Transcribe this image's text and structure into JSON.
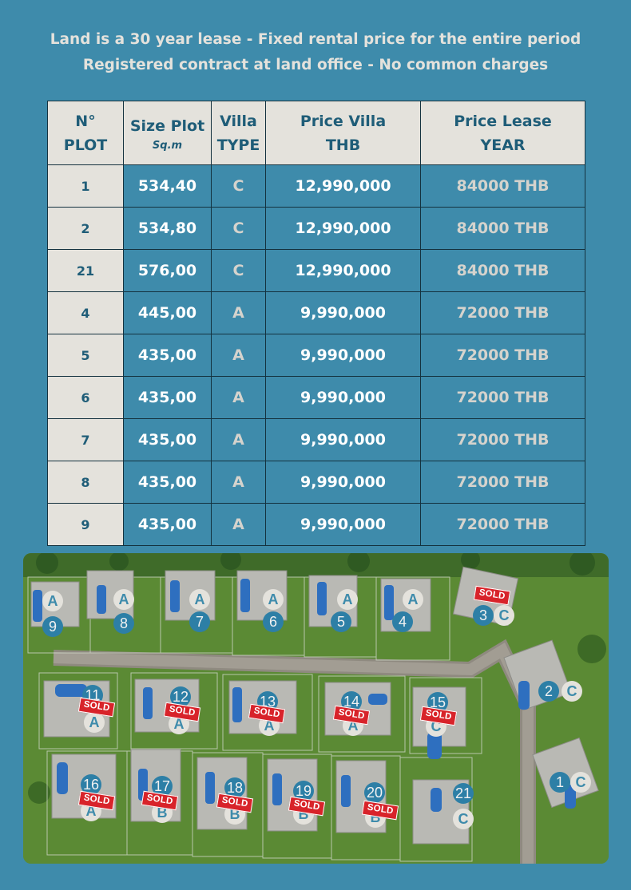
{
  "header": {
    "line1": "Land is a 30 year lease  -  Fixed rental price for the entire period",
    "line2": "Registered contract at land office  -  No common charges"
  },
  "table": {
    "headers": {
      "plot": {
        "line1": "N°",
        "line2": "PLOT"
      },
      "size": {
        "line1": "Size Plot",
        "line2": "Sq.m"
      },
      "type": {
        "line1": "Villa",
        "line2": "TYPE"
      },
      "price": {
        "line1": "Price Villa",
        "line2": "THB"
      },
      "lease": {
        "line1": "Price Lease",
        "line2": "YEAR"
      }
    },
    "rows": [
      {
        "plot": "1",
        "size": "534,40",
        "type": "C",
        "price": "12,990,000",
        "lease": "84000 THB"
      },
      {
        "plot": "2",
        "size": "534,80",
        "type": "C",
        "price": "12,990,000",
        "lease": "84000 THB"
      },
      {
        "plot": "21",
        "size": "576,00",
        "type": "C",
        "price": "12,990,000",
        "lease": "84000 THB"
      },
      {
        "plot": "4",
        "size": "445,00",
        "type": "A",
        "price": "9,990,000",
        "lease": "72000 THB"
      },
      {
        "plot": "5",
        "size": "435,00",
        "type": "A",
        "price": "9,990,000",
        "lease": "72000 THB"
      },
      {
        "plot": "6",
        "size": "435,00",
        "type": "A",
        "price": "9,990,000",
        "lease": "72000 THB"
      },
      {
        "plot": "7",
        "size": "435,00",
        "type": "A",
        "price": "9,990,000",
        "lease": "72000 THB"
      },
      {
        "plot": "8",
        "size": "435,00",
        "type": "A",
        "price": "9,990,000",
        "lease": "72000 THB"
      },
      {
        "plot": "9",
        "size": "435,00",
        "type": "A",
        "price": "9,990,000",
        "lease": "72000 THB"
      }
    ]
  },
  "map": {
    "sold_label": "SOLD",
    "plots": [
      {
        "num": "9",
        "type": "A",
        "sold": false
      },
      {
        "num": "8",
        "type": "A",
        "sold": false
      },
      {
        "num": "7",
        "type": "A",
        "sold": false
      },
      {
        "num": "6",
        "type": "A",
        "sold": false
      },
      {
        "num": "5",
        "type": "A",
        "sold": false
      },
      {
        "num": "4",
        "type": "A",
        "sold": false
      },
      {
        "num": "3",
        "type": "C",
        "sold": true
      },
      {
        "num": "2",
        "type": "C",
        "sold": false
      },
      {
        "num": "1",
        "type": "C",
        "sold": false
      },
      {
        "num": "11",
        "type": "A",
        "sold": true
      },
      {
        "num": "12",
        "type": "A",
        "sold": true
      },
      {
        "num": "13",
        "type": "A",
        "sold": true
      },
      {
        "num": "14",
        "type": "A",
        "sold": true
      },
      {
        "num": "15",
        "type": "C",
        "sold": true
      },
      {
        "num": "16",
        "type": "A",
        "sold": true
      },
      {
        "num": "17",
        "type": "B",
        "sold": true
      },
      {
        "num": "18",
        "type": "B",
        "sold": true
      },
      {
        "num": "19",
        "type": "B",
        "sold": true
      },
      {
        "num": "20",
        "type": "B",
        "sold": true
      },
      {
        "num": "21",
        "type": "C",
        "sold": false
      }
    ]
  },
  "colors": {
    "background": "#3e8bab",
    "header_cell": "#e4e2dc",
    "header_text": "#1f5d78",
    "sold_badge": "#d8232a",
    "number_marker": "#2d7fa6"
  }
}
